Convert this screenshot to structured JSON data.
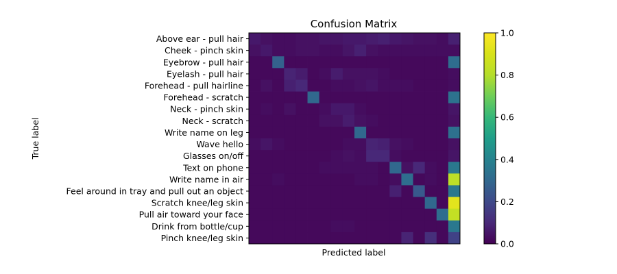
{
  "chart_data": {
    "type": "heatmap",
    "title": "Confusion Matrix",
    "xlabel": "Predicted label",
    "ylabel": "True label",
    "row_labels": [
      "Above ear - pull hair",
      "Cheek - pinch skin",
      "Eyebrow - pull hair",
      "Eyelash - pull hair",
      "Forehead - pull hairline",
      "Forehead - scratch",
      "Neck - pinch skin",
      "Neck - scratch",
      "Write name on leg",
      "Wave hello",
      "Glasses on/off",
      "Text on phone",
      "Write name in air",
      "Feel around in tray and pull out an object",
      "Scratch knee/leg skin",
      "Pull air toward your face",
      "Drink from bottle/cup",
      "Pinch knee/leg skin"
    ],
    "column_labels_shown": false,
    "color_scale": {
      "name": "viridis",
      "min": 0.0,
      "max": 1.0,
      "ticks": [
        "0.0",
        "0.2",
        "0.4",
        "0.6",
        "0.8",
        "1.0"
      ]
    },
    "matrix": [
      [
        0.06,
        0.04,
        0.03,
        0.03,
        0.04,
        0.04,
        0.05,
        0.05,
        0.06,
        0.06,
        0.07,
        0.08,
        0.06,
        0.05,
        0.04,
        0.04,
        0.03,
        0.08
      ],
      [
        0.04,
        0.06,
        0.03,
        0.03,
        0.04,
        0.04,
        0.03,
        0.03,
        0.05,
        0.08,
        0.04,
        0.03,
        0.03,
        0.03,
        0.03,
        0.03,
        0.03,
        0.03
      ],
      [
        0.02,
        0.02,
        0.28,
        0.02,
        0.02,
        0.02,
        0.02,
        0.02,
        0.02,
        0.02,
        0.02,
        0.02,
        0.02,
        0.02,
        0.02,
        0.02,
        0.02,
        0.32
      ],
      [
        0.02,
        0.02,
        0.02,
        0.09,
        0.07,
        0.02,
        0.03,
        0.07,
        0.04,
        0.04,
        0.04,
        0.03,
        0.02,
        0.02,
        0.02,
        0.02,
        0.02,
        0.03
      ],
      [
        0.02,
        0.04,
        0.02,
        0.08,
        0.1,
        0.02,
        0.02,
        0.03,
        0.03,
        0.04,
        0.05,
        0.03,
        0.03,
        0.03,
        0.02,
        0.02,
        0.02,
        0.03
      ],
      [
        0.02,
        0.02,
        0.02,
        0.02,
        0.02,
        0.3,
        0.02,
        0.02,
        0.02,
        0.02,
        0.02,
        0.02,
        0.02,
        0.02,
        0.02,
        0.02,
        0.02,
        0.34
      ],
      [
        0.02,
        0.03,
        0.02,
        0.04,
        0.02,
        0.02,
        0.03,
        0.06,
        0.06,
        0.03,
        0.02,
        0.02,
        0.02,
        0.02,
        0.02,
        0.02,
        0.02,
        0.05
      ],
      [
        0.02,
        0.02,
        0.02,
        0.02,
        0.02,
        0.02,
        0.04,
        0.04,
        0.07,
        0.04,
        0.03,
        0.02,
        0.02,
        0.02,
        0.02,
        0.02,
        0.02,
        0.04
      ],
      [
        0.02,
        0.02,
        0.02,
        0.02,
        0.02,
        0.02,
        0.02,
        0.02,
        0.02,
        0.3,
        0.02,
        0.02,
        0.02,
        0.02,
        0.02,
        0.02,
        0.02,
        0.33
      ],
      [
        0.03,
        0.05,
        0.03,
        0.02,
        0.02,
        0.02,
        0.02,
        0.02,
        0.03,
        0.03,
        0.09,
        0.08,
        0.04,
        0.03,
        0.02,
        0.02,
        0.02,
        0.04
      ],
      [
        0.02,
        0.02,
        0.02,
        0.02,
        0.02,
        0.02,
        0.02,
        0.03,
        0.04,
        0.03,
        0.1,
        0.1,
        0.03,
        0.02,
        0.02,
        0.02,
        0.02,
        0.05
      ],
      [
        0.02,
        0.02,
        0.02,
        0.02,
        0.02,
        0.02,
        0.03,
        0.03,
        0.03,
        0.03,
        0.03,
        0.02,
        0.3,
        0.04,
        0.1,
        0.03,
        0.02,
        0.36
      ],
      [
        0.02,
        0.02,
        0.03,
        0.02,
        0.02,
        0.02,
        0.02,
        0.02,
        0.02,
        0.03,
        0.03,
        0.02,
        0.03,
        0.32,
        0.02,
        0.03,
        0.02,
        0.82
      ],
      [
        0.02,
        0.02,
        0.02,
        0.02,
        0.02,
        0.02,
        0.02,
        0.02,
        0.02,
        0.02,
        0.02,
        0.02,
        0.08,
        0.02,
        0.25,
        0.02,
        0.02,
        0.36
      ],
      [
        0.02,
        0.02,
        0.02,
        0.02,
        0.02,
        0.02,
        0.02,
        0.02,
        0.02,
        0.02,
        0.02,
        0.02,
        0.02,
        0.02,
        0.02,
        0.3,
        0.02,
        0.93
      ],
      [
        0.02,
        0.02,
        0.02,
        0.02,
        0.02,
        0.02,
        0.02,
        0.02,
        0.02,
        0.02,
        0.02,
        0.02,
        0.02,
        0.02,
        0.02,
        0.02,
        0.32,
        0.84
      ],
      [
        0.02,
        0.02,
        0.02,
        0.02,
        0.02,
        0.02,
        0.02,
        0.03,
        0.03,
        0.02,
        0.02,
        0.02,
        0.02,
        0.02,
        0.02,
        0.02,
        0.02,
        0.36
      ],
      [
        0.02,
        0.02,
        0.02,
        0.02,
        0.02,
        0.02,
        0.02,
        0.02,
        0.02,
        0.02,
        0.02,
        0.02,
        0.02,
        0.09,
        0.02,
        0.12,
        0.02,
        0.18
      ]
    ]
  }
}
